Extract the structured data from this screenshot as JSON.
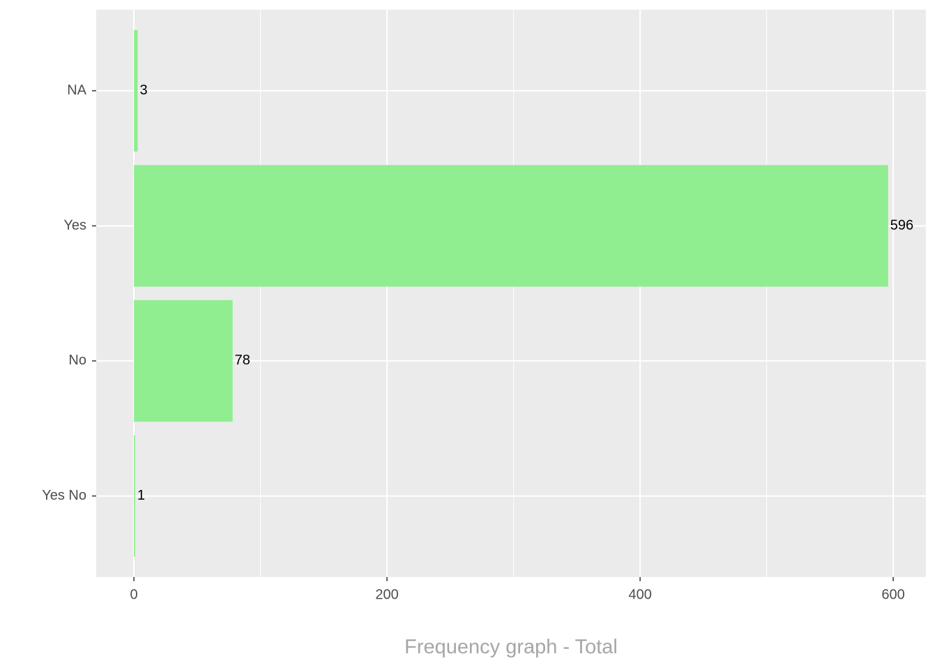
{
  "chart_data": {
    "type": "bar",
    "orientation": "horizontal",
    "x_axis_label": "Frequency graph - Total",
    "categories": [
      "NA",
      "Yes",
      "No",
      "Yes No"
    ],
    "values": [
      3,
      596,
      78,
      1
    ],
    "color": "#90ee90",
    "xlim": [
      -29.8,
      625.8
    ],
    "xticks": [
      0,
      200,
      400,
      600
    ],
    "x_minor_grid": [
      100,
      300,
      500
    ],
    "grid": true,
    "panel_color": "#ebebeb"
  }
}
